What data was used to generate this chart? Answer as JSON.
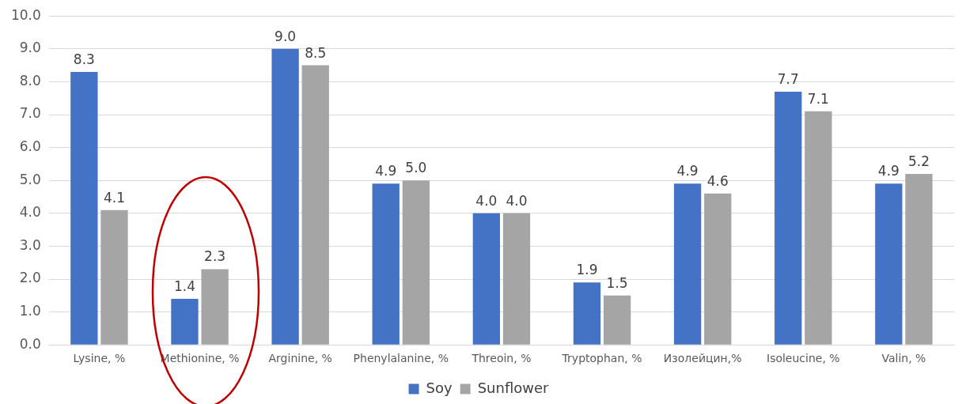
{
  "chart_data": {
    "type": "bar",
    "categories": [
      "Lysine, %",
      "Methionine, %",
      "Arginine, %",
      "Phenylalanine, %",
      "Threoin, %",
      "Tryptophan, %",
      "Изолейцин,%",
      "Isoleucine, %",
      "Valin, %"
    ],
    "series": [
      {
        "name": "Soy",
        "color": "#4472c4",
        "values": [
          8.3,
          1.4,
          9.0,
          4.9,
          4.0,
          1.9,
          4.9,
          7.7,
          4.9
        ],
        "value_labels": [
          "8.3",
          "1.4",
          "9.0",
          "4.9",
          "4.0",
          "1.9",
          "4.9",
          "7.7",
          "4.9"
        ]
      },
      {
        "name": "Sunflower",
        "color": "#a5a5a5",
        "values": [
          4.1,
          2.3,
          8.5,
          5.0,
          4.0,
          1.5,
          4.6,
          7.1,
          5.2
        ],
        "value_labels": [
          "4.1",
          "2.3",
          "8.5",
          "5.0",
          "4.0",
          "1.5",
          "4.6",
          "7.1",
          "5.2"
        ]
      }
    ],
    "ylim": [
      0,
      10
    ],
    "yticks": [
      {
        "value": 0,
        "label": "0.0"
      },
      {
        "value": 1,
        "label": "1.0"
      },
      {
        "value": 2,
        "label": "2.0"
      },
      {
        "value": 3,
        "label": "3.0"
      },
      {
        "value": 4,
        "label": "4.0"
      },
      {
        "value": 5,
        "label": "5.0"
      },
      {
        "value": 6,
        "label": "6.0"
      },
      {
        "value": 7,
        "label": "7.0"
      },
      {
        "value": 8,
        "label": "8.0"
      },
      {
        "value": 9,
        "label": "9.0"
      },
      {
        "value": 10,
        "label": "10.0"
      }
    ],
    "grid": "y",
    "legend": "bottom"
  }
}
